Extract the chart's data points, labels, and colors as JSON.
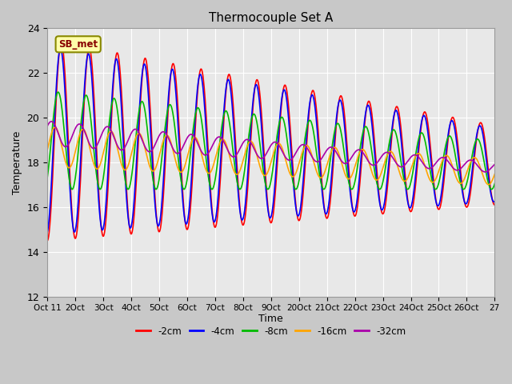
{
  "title": "Thermocouple Set A",
  "xlabel": "Time",
  "ylabel": "Temperature",
  "ylim": [
    12,
    24
  ],
  "yticks": [
    12,
    14,
    16,
    18,
    20,
    22,
    24
  ],
  "xtick_positions": [
    11,
    12,
    13,
    14,
    15,
    16,
    17,
    18,
    19,
    20,
    21,
    22,
    23,
    24,
    25,
    26,
    27
  ],
  "xtick_labels": [
    "Oct 11",
    "2Oct",
    "3Oct",
    "4Oct",
    "5Oct",
    "6Oct",
    "7Oct",
    "8Oct",
    "9Oct",
    "20Oct",
    "21Oct",
    "22Oct",
    "23Oct",
    "24Oct",
    "25Oct",
    "26Oct",
    "27"
  ],
  "legend_entries": [
    "-2cm",
    "-4cm",
    "-8cm",
    "-16cm",
    "-32cm"
  ],
  "line_colors": [
    "#ff0000",
    "#0000ff",
    "#00bb00",
    "#ffa500",
    "#aa00aa"
  ],
  "annotation_text": "SB_met",
  "annotation_color": "#880000",
  "annotation_bg": "#ffffaa",
  "annotation_border": "#888800",
  "fig_bg": "#c8c8c8",
  "plot_bg": "#e8e8e8",
  "grid_color": "#ffffff"
}
